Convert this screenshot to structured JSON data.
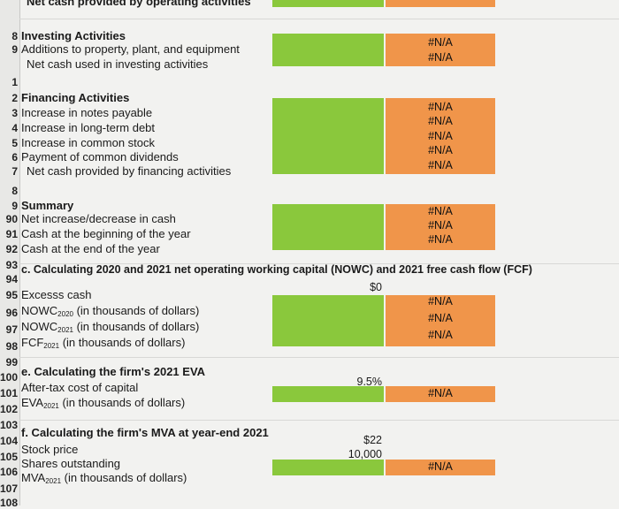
{
  "top_label": "Net cash provided by operating activities",
  "investing": {
    "heading": "Investing Activities",
    "additions": "Additions to property, plant, and equipment",
    "net": "Net cash used in investing activities",
    "values": [
      "#N/A",
      "#N/A"
    ]
  },
  "financing": {
    "heading": "Financing Activities",
    "notes": "Increase in notes payable",
    "debt": "Increase in long-term debt",
    "stock": "Increase in common stock",
    "dividends": "Payment of common dividends",
    "net": "Net cash provided by financing activities",
    "values": [
      "#N/A",
      "#N/A",
      "#N/A",
      "#N/A",
      "#N/A"
    ]
  },
  "summary": {
    "heading": "Summary",
    "net_change": "Net increase/decrease in cash",
    "beginning": "Cash at the beginning of the year",
    "end": "Cash at the end of the year",
    "values": [
      "#N/A",
      "#N/A",
      "#N/A"
    ]
  },
  "nowc": {
    "heading": "c.  Calculating 2020 and 2021 net operating working capital (NOWC) and 2021 free cash flow (FCF)",
    "excess_cash": "Excesss cash",
    "excess_cash_value": "$0",
    "nowc2020_pre": "NOWC",
    "nowc2020_sub": "2020",
    "nowc2020_post": " (in thousands of dollars)",
    "nowc2021_pre": "NOWC",
    "nowc2021_sub": "2021",
    "nowc2021_post": " (in thousands of dollars)",
    "fcf_pre": "FCF",
    "fcf_sub": "2021",
    "fcf_post": " (in thousands of dollars)",
    "values": [
      "#N/A",
      "#N/A",
      "#N/A"
    ]
  },
  "eva": {
    "heading": "e.  Calculating the firm's 2021 EVA",
    "cost": "After-tax cost of capital",
    "cost_value": "9.5%",
    "eva_pre": "EVA",
    "eva_sub": "2021",
    "eva_post": " (in thousands of dollars)",
    "value": "#N/A"
  },
  "mva": {
    "heading": "f.  Calculating the firm's MVA at year-end 2021",
    "price": "Stock price",
    "price_value": "$22",
    "shares": "Shares outstanding",
    "shares_value": "10,000",
    "mva_pre": "MVA",
    "mva_sub": "2021",
    "mva_post": " (in thousands of dollars)",
    "value": "#N/A"
  },
  "row_numbers": {
    "r81": "1",
    "r82": "2",
    "r83": "3",
    "r84": "4",
    "r85": "5",
    "r86": "6",
    "r87": "7",
    "r88": "8",
    "r89": "9",
    "r90": "90",
    "r91": "91",
    "r92": "92",
    "r93": "93",
    "r94": "94",
    "r95": "95",
    "r96": "96",
    "r97": "97",
    "r98": "98",
    "r99": "99",
    "r100": "100",
    "r101": "101",
    "r102": "102",
    "r103": "103",
    "r104": "104",
    "r105": "105",
    "r106": "106",
    "r107": "107",
    "r108": "108"
  },
  "colors": {
    "green": "#8ac83c",
    "orange": "#f0954a"
  }
}
